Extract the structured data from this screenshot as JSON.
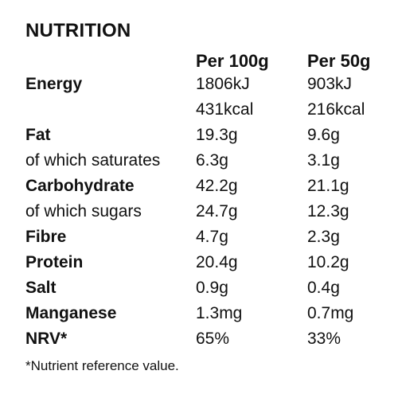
{
  "title": "NUTRITION",
  "columns": [
    "Per 100g",
    "Per 50g"
  ],
  "rows": [
    {
      "label": "Energy",
      "per100": "1806kJ",
      "per50": "903kJ"
    },
    {
      "label": "",
      "per100": "431kcal",
      "per50": "216kcal"
    },
    {
      "label": "Fat",
      "per100": "19.3g",
      "per50": "9.6g"
    },
    {
      "label": "of which saturates",
      "per100": "6.3g",
      "per50": "3.1g"
    },
    {
      "label": "Carbohydrate",
      "per100": "42.2g",
      "per50": "21.1g"
    },
    {
      "label": "of which sugars",
      "per100": "24.7g",
      "per50": "12.3g"
    },
    {
      "label": "Fibre",
      "per100": "4.7g",
      "per50": "2.3g"
    },
    {
      "label": "Protein",
      "per100": "20.4g",
      "per50": "10.2g"
    },
    {
      "label": "Salt",
      "per100": "0.9g",
      "per50": "0.4g"
    },
    {
      "label": "Manganese",
      "per100": "1.3mg",
      "per50": "0.7mg"
    },
    {
      "label": "NRV*",
      "per100": "65%",
      "per50": "33%"
    }
  ],
  "footnote": "*Nutrient reference value."
}
